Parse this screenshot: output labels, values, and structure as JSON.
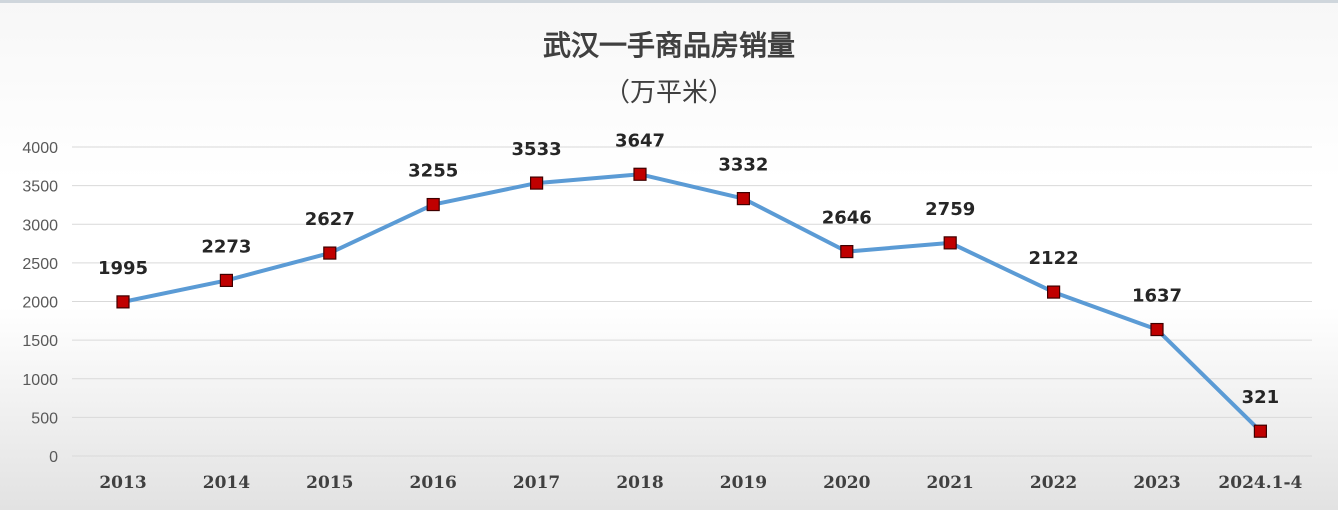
{
  "chart_data": {
    "type": "line",
    "title": "武汉一手商品房销量",
    "subtitle": "（万平米）",
    "categories": [
      "2013",
      "2014",
      "2015",
      "2016",
      "2017",
      "2018",
      "2019",
      "2020",
      "2021",
      "2022",
      "2023",
      "2024.1-4"
    ],
    "values": [
      1995,
      2273,
      2627,
      3255,
      3533,
      3647,
      3332,
      2646,
      2759,
      2122,
      1637,
      321
    ],
    "ylim": [
      0,
      4000
    ],
    "yticks": [
      0,
      500,
      1000,
      1500,
      2000,
      2500,
      3000,
      3500,
      4000
    ],
    "grid": true,
    "legend": "none",
    "colors": {
      "line": "#5b9bd5",
      "marker": "#c00000",
      "marker_border": "#3f0000"
    }
  }
}
